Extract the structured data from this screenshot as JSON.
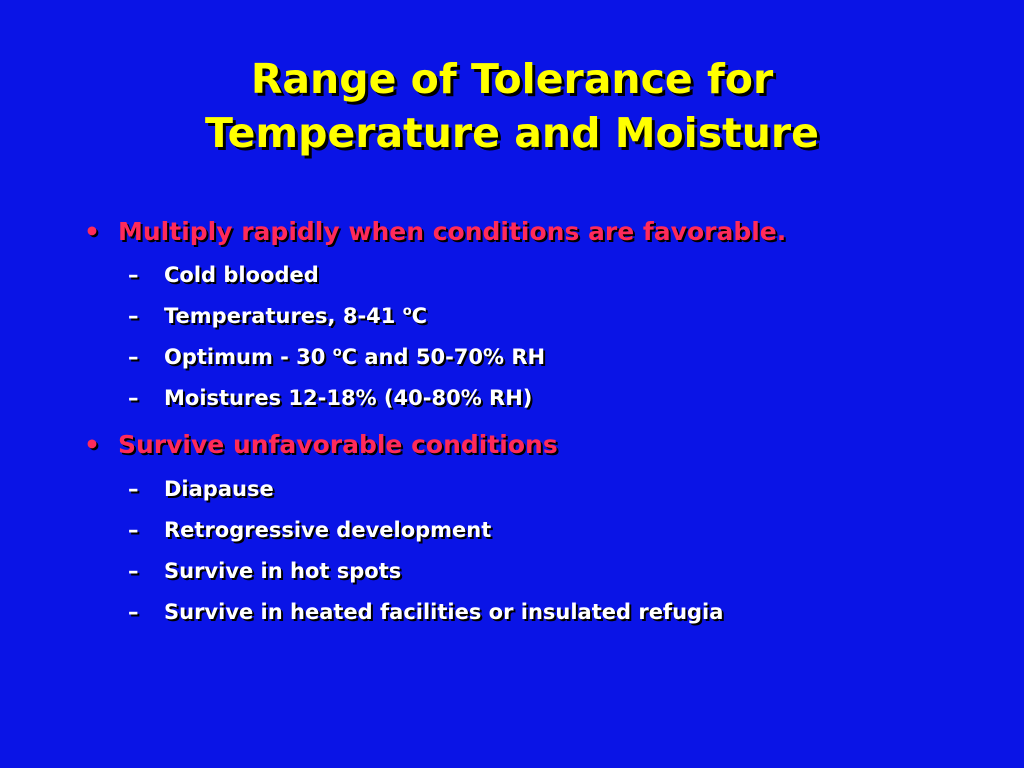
{
  "slide": {
    "title_line_1": "Range of Tolerance for",
    "title_line_2": "Temperature and Moisture",
    "bullets": [
      {
        "marker": "•",
        "text": "Multiply rapidly when conditions are favorable.",
        "subs": [
          {
            "marker": "–",
            "text": "Cold blooded"
          },
          {
            "marker": "–",
            "text_before": "Temperatures, 8-41 ",
            "degree": "o",
            "text_after": "C"
          },
          {
            "marker": "–",
            "text_before": "Optimum - 30 ",
            "degree": "o",
            "text_after": "C and 50-70% RH"
          },
          {
            "marker": "–",
            "text": "Moistures 12-18% (40-80% RH)"
          }
        ]
      },
      {
        "marker": "•",
        "text": "Survive unfavorable conditions",
        "subs": [
          {
            "marker": "–",
            "text": "Diapause"
          },
          {
            "marker": "–",
            "text": "Retrogressive development"
          },
          {
            "marker": "–",
            "text": "Survive in hot spots"
          },
          {
            "marker": "–",
            "text": "Survive in heated facilities or insulated refugia"
          }
        ]
      }
    ],
    "colors": {
      "background": "#0a14e6",
      "title": "#ffff00",
      "level1": "#ff2a5a",
      "level2": "#ffffff"
    }
  }
}
